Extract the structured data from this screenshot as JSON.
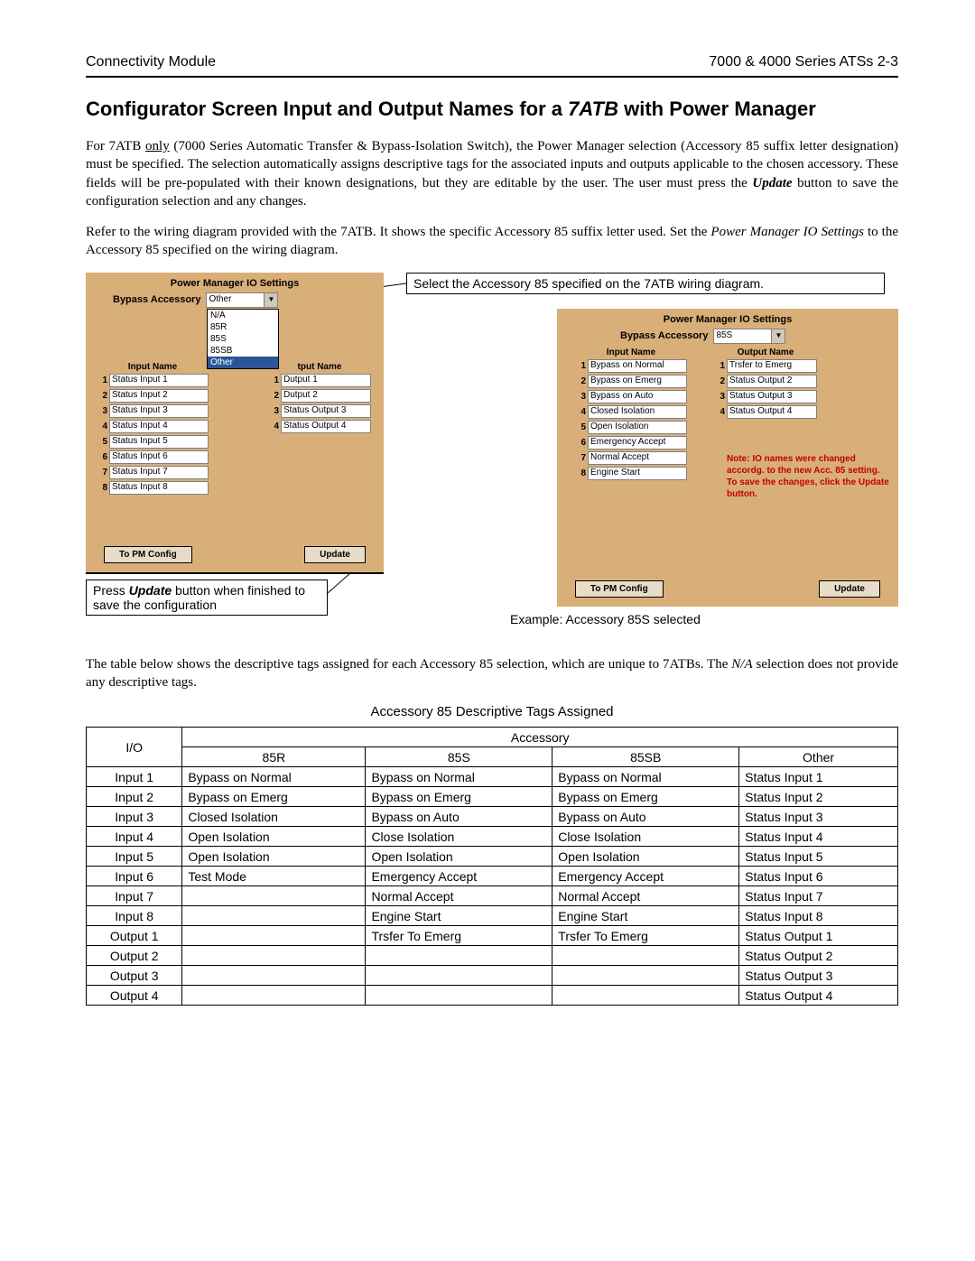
{
  "header": {
    "left": "Connectivity Module",
    "right": "7000 & 4000 Series ATSs    2-3"
  },
  "title_pre": "Configurator Screen Input and Output Names for a ",
  "title_em": "7ATB",
  "title_post": " with Power Manager",
  "para1_a": "For 7ATB ",
  "para1_only": "only",
  "para1_b": " (7000 Series Automatic Transfer & Bypass-Isolation Switch), the Power Manager selection (Accessory 85 suffix letter designation) must be specified.  The selection automatically assigns descriptive tags for the associated inputs and outputs applicable to the chosen accessory.  These fields will be pre-populated with their known designations, but they are editable by the user.  The user must press the ",
  "para1_update": "Update",
  "para1_c": " button to save the configuration selection and any changes.",
  "para2_a": "Refer to the wiring diagram provided with the 7ATB.  It shows the specific Accessory 85 suffix letter used.  Set the ",
  "para2_em": "Power Manager IO Settings",
  "para2_b": " to the Accessory 85 specified on the wiring diagram.",
  "callout_top": "Select the Accessory 85 specified on the 7ATB wiring diagram.",
  "callout_bottom_a": "Press ",
  "callout_bottom_b": "Update",
  "callout_bottom_c": " button when finished to save the configuration",
  "example_label": "Example: Accessory 85S selected",
  "panel_left": {
    "title": "Power Manager IO Settings",
    "bypass_label": "Bypass Accessory",
    "dropdown_value": "Other",
    "dropdown_options": [
      "N/A",
      "85R",
      "85S",
      "85SB",
      "Other"
    ],
    "input_header": "Input Name",
    "output_header": "tput Name",
    "inputs": [
      "Status Input 1",
      "Status Input 2",
      "Status Input 3",
      "Status Input 4",
      "Status Input 5",
      "Status Input 6",
      "Status Input 7",
      "Status Input 8"
    ],
    "outputs": [
      "Dutput 1",
      "Dutput 2",
      "Status Output 3",
      "Status Output 4"
    ],
    "btn_left": "To PM Config",
    "btn_right": "Update"
  },
  "panel_right": {
    "title": "Power Manager IO Settings",
    "bypass_label": "Bypass Accessory",
    "dropdown_value": "85S",
    "input_header": "Input Name",
    "output_header": "Output Name",
    "inputs": [
      "Bypass on Normal",
      "Bypass on Emerg",
      "Bypass on Auto",
      "Closed Isolation",
      "Open Isolation",
      "Emergency Accept",
      "Normal Accept",
      "Engine Start"
    ],
    "outputs": [
      "Trsfer to Emerg",
      "Status Output 2",
      "Status Output 3",
      "Status Output 4"
    ],
    "note": "Note: IO names were changed accordg. to the new Acc. 85 setting. To save the changes, click the Update button.",
    "btn_left": "To PM Config",
    "btn_right": "Update"
  },
  "para3_a": "The table below shows the descriptive tags assigned for each Accessory 85 selection, which are unique to 7ATBs. The ",
  "para3_em": "N/A",
  "para3_b": " selection does not provide any descriptive tags.",
  "table_title": "Accessory 85 Descriptive Tags Assigned",
  "table": {
    "io_header": "I/O",
    "acc_header": "Accessory",
    "cols": [
      "85R",
      "85S",
      "85SB",
      "Other"
    ],
    "rows": [
      {
        "io": "Input 1",
        "c": [
          "Bypass on Normal",
          "Bypass on Normal",
          "Bypass on Normal",
          "Status Input 1"
        ]
      },
      {
        "io": "Input 2",
        "c": [
          "Bypass on Emerg",
          "Bypass on Emerg",
          "Bypass on Emerg",
          "Status Input 2"
        ]
      },
      {
        "io": "Input 3",
        "c": [
          "Closed Isolation",
          "Bypass on Auto",
          "Bypass on Auto",
          "Status Input 3"
        ]
      },
      {
        "io": "Input 4",
        "c": [
          "Open Isolation",
          "Close Isolation",
          "Close Isolation",
          "Status Input 4"
        ]
      },
      {
        "io": "Input 5",
        "c": [
          "Open Isolation",
          "Open Isolation",
          "Open Isolation",
          "Status Input 5"
        ]
      },
      {
        "io": "Input 6",
        "c": [
          "Test Mode",
          "Emergency Accept",
          "Emergency Accept",
          "Status Input 6"
        ]
      },
      {
        "io": "Input 7",
        "c": [
          "",
          "Normal Accept",
          "Normal Accept",
          "Status Input 7"
        ]
      },
      {
        "io": "Input 8",
        "c": [
          "",
          "Engine Start",
          "Engine Start",
          "Status Input 8"
        ]
      },
      {
        "io": "Output 1",
        "c": [
          "",
          "Trsfer To Emerg",
          "Trsfer To Emerg",
          "Status Output 1"
        ]
      },
      {
        "io": "Output 2",
        "c": [
          "",
          "",
          "",
          "Status Output 2"
        ]
      },
      {
        "io": "Output 3",
        "c": [
          "",
          "",
          "",
          "Status Output 3"
        ]
      },
      {
        "io": "Output 4",
        "c": [
          "",
          "",
          "",
          "Status Output 4"
        ]
      }
    ]
  }
}
